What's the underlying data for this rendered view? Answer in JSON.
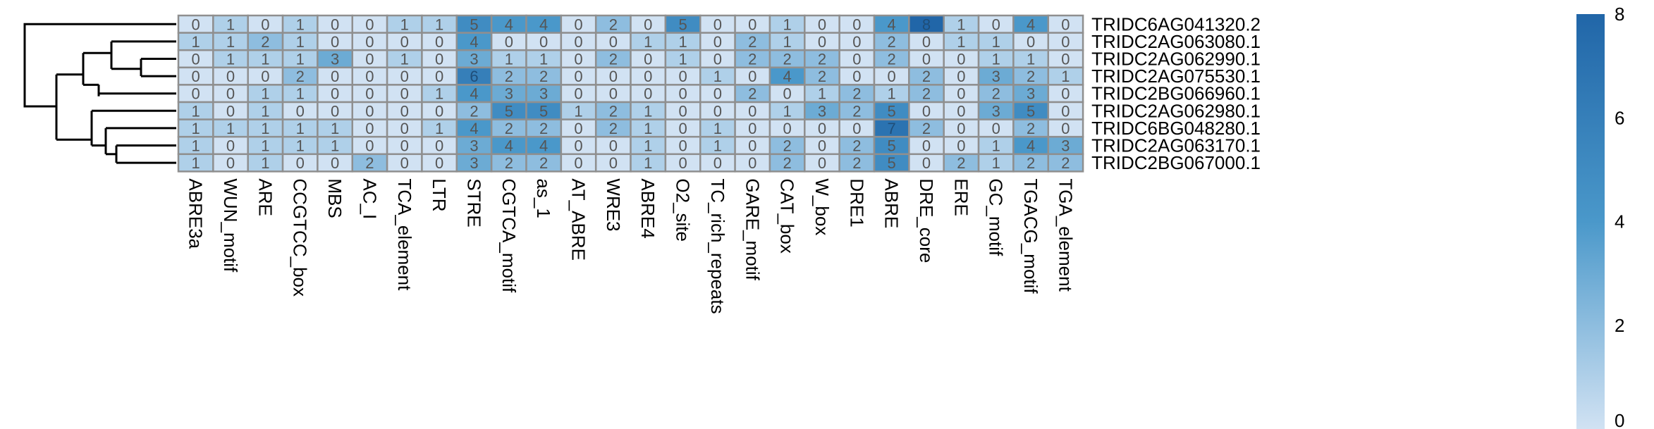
{
  "chart_data": {
    "type": "heatmap",
    "title": "",
    "xlabel": "",
    "ylabel": "",
    "rows": [
      "TRIDC6AG041320.2",
      "TRIDC2AG063080.1",
      "TRIDC2AG062990.1",
      "TRIDC2AG075530.1",
      "TRIDC2BG066960.1",
      "TRIDC2AG062980.1",
      "TRIDC6BG048280.1",
      "TRIDC2AG063170.1",
      "TRIDC2BG067000.1"
    ],
    "columns": [
      "ABRE3a",
      "WUN_motif",
      "ARE",
      "CCGTCC_box",
      "MBS",
      "AC_I",
      "TCA_element",
      "LTR",
      "STRE",
      "CGTCA_motif",
      "as_1",
      "AT_ABRE",
      "WRE3",
      "ABRE4",
      "O2_site",
      "TC_rich_repeats",
      "GARE_motif",
      "CAT_box",
      "W_box",
      "DRE1",
      "ABRE",
      "DRE_core",
      "ERE",
      "GC_motif",
      "TGACG_motif",
      "TGA_element"
    ],
    "values": [
      [
        0,
        1,
        0,
        1,
        0,
        0,
        1,
        1,
        5,
        4,
        4,
        0,
        2,
        0,
        5,
        0,
        0,
        1,
        0,
        0,
        4,
        8,
        1,
        0,
        4,
        0
      ],
      [
        1,
        1,
        2,
        1,
        0,
        0,
        0,
        0,
        4,
        0,
        0,
        0,
        0,
        1,
        1,
        0,
        2,
        1,
        0,
        0,
        2,
        0,
        1,
        1,
        0,
        0
      ],
      [
        0,
        1,
        1,
        1,
        3,
        0,
        1,
        0,
        3,
        1,
        1,
        0,
        2,
        0,
        1,
        0,
        2,
        2,
        2,
        0,
        2,
        0,
        0,
        1,
        1,
        0
      ],
      [
        0,
        0,
        0,
        2,
        0,
        0,
        0,
        0,
        6,
        2,
        2,
        0,
        0,
        0,
        0,
        1,
        0,
        4,
        2,
        0,
        0,
        2,
        0,
        3,
        2,
        1
      ],
      [
        0,
        0,
        1,
        1,
        0,
        0,
        0,
        1,
        4,
        3,
        3,
        0,
        0,
        0,
        0,
        0,
        2,
        0,
        1,
        2,
        1,
        2,
        0,
        2,
        3,
        0
      ],
      [
        1,
        0,
        1,
        0,
        0,
        0,
        0,
        0,
        2,
        5,
        5,
        1,
        2,
        1,
        0,
        0,
        0,
        1,
        3,
        2,
        5,
        0,
        0,
        3,
        5,
        0
      ],
      [
        1,
        1,
        1,
        1,
        1,
        0,
        0,
        1,
        4,
        2,
        2,
        0,
        2,
        1,
        0,
        1,
        0,
        0,
        0,
        0,
        7,
        2,
        0,
        0,
        2,
        0
      ],
      [
        1,
        0,
        1,
        1,
        1,
        0,
        0,
        0,
        3,
        4,
        4,
        0,
        0,
        1,
        0,
        1,
        0,
        2,
        0,
        2,
        5,
        0,
        0,
        1,
        4,
        3
      ],
      [
        1,
        0,
        1,
        0,
        0,
        2,
        0,
        0,
        3,
        2,
        2,
        0,
        0,
        1,
        0,
        0,
        0,
        2,
        0,
        2,
        5,
        0,
        2,
        1,
        2,
        2
      ]
    ],
    "value_range": [
      0,
      8
    ],
    "colorbar": {
      "ticks": [
        "0",
        "2",
        "4",
        "6",
        "8"
      ],
      "colors": {
        "low": "#d1e2f3",
        "mid": "#4a98ca",
        "high": "#2166a8"
      }
    },
    "cell_text_colors": {
      "light": "#555555",
      "dark": "#1f4e79"
    },
    "dendrogram": "row clustering on left",
    "grid": true,
    "cell_border_color": "#8f8f8f"
  }
}
